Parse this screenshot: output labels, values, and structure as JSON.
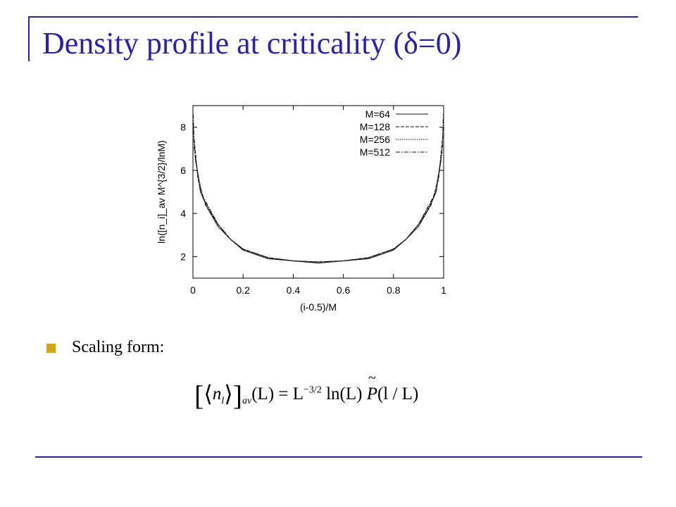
{
  "slide": {
    "title": "Density profile at criticality (δ=0)",
    "bullet": "Scaling form:",
    "formula": {
      "lbrack": "[",
      "langle": "⟨",
      "n": "n",
      "n_sub": "l",
      "rangle": "⟩",
      "rbrack": "]",
      "av": "av",
      "part1": "(L) = L",
      "exp": "−3/2",
      "part2": " ln(L)",
      "P": "P",
      "part3": "(l / L)"
    },
    "colors": {
      "title": "#2a22a8",
      "bullet": "#d4a420",
      "rule": "#2a22a8"
    }
  },
  "chart_data": {
    "type": "line",
    "xlabel": "(i-0.5)/M",
    "ylabel": "ln([n_i]_av M^{3/2}/lnM)",
    "xlim": [
      0,
      1
    ],
    "ylim": [
      1,
      9
    ],
    "xticks": [
      "0",
      "0.2",
      "0.4",
      "0.6",
      "0.8",
      "1"
    ],
    "yticks": [
      "2",
      "4",
      "6",
      "8"
    ],
    "legend_position": "top-right",
    "series": [
      {
        "name": "M=64",
        "style": "solid",
        "x": [
          0.01,
          0.03,
          0.06,
          0.1,
          0.15,
          0.2,
          0.3,
          0.4,
          0.5,
          0.6,
          0.7,
          0.8,
          0.85,
          0.9,
          0.94,
          0.97,
          0.99
        ],
        "y": [
          6.6,
          5.0,
          4.2,
          3.4,
          2.8,
          2.3,
          1.9,
          1.8,
          1.7,
          1.8,
          1.9,
          2.3,
          2.8,
          3.4,
          4.2,
          5.0,
          6.6
        ]
      },
      {
        "name": "M=128",
        "style": "dashed",
        "x": [
          0.005,
          0.02,
          0.05,
          0.1,
          0.15,
          0.2,
          0.3,
          0.4,
          0.5,
          0.6,
          0.7,
          0.8,
          0.85,
          0.9,
          0.95,
          0.98,
          0.995
        ],
        "y": [
          7.4,
          5.6,
          4.4,
          3.5,
          2.8,
          2.35,
          1.95,
          1.8,
          1.75,
          1.8,
          1.95,
          2.35,
          2.8,
          3.5,
          4.4,
          5.6,
          7.4
        ]
      },
      {
        "name": "M=256",
        "style": "dotted",
        "x": [
          0.002,
          0.01,
          0.04,
          0.1,
          0.15,
          0.2,
          0.3,
          0.4,
          0.5,
          0.6,
          0.7,
          0.8,
          0.85,
          0.9,
          0.96,
          0.99,
          0.998
        ],
        "y": [
          8.0,
          6.4,
          4.7,
          3.5,
          2.8,
          2.35,
          1.95,
          1.8,
          1.75,
          1.8,
          1.95,
          2.35,
          2.8,
          3.5,
          4.7,
          6.4,
          8.0
        ]
      },
      {
        "name": "M=512",
        "style": "dashdot",
        "x": [
          0.001,
          0.005,
          0.03,
          0.1,
          0.15,
          0.2,
          0.3,
          0.4,
          0.5,
          0.6,
          0.7,
          0.8,
          0.85,
          0.9,
          0.97,
          0.995,
          0.999
        ],
        "y": [
          8.6,
          7.0,
          5.0,
          3.5,
          2.8,
          2.35,
          1.95,
          1.8,
          1.75,
          1.8,
          1.95,
          2.35,
          2.8,
          3.5,
          5.0,
          7.0,
          8.6
        ]
      }
    ]
  }
}
